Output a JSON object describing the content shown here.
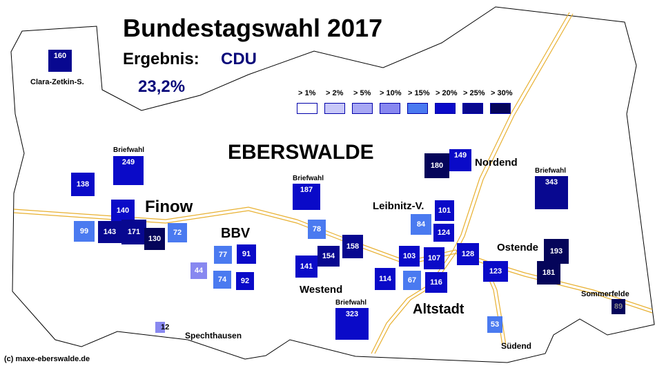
{
  "title": "Bundestagswahl 2017",
  "result": {
    "label": "Ergebnis:",
    "party": "CDU",
    "value": "23,2%"
  },
  "city": "EBERSWALDE",
  "copyright": "(c) maxe-eberswalde.de",
  "colors": {
    "outline": "#000000",
    "road": "#e8b030",
    "text_accent": "#0a0a7a"
  },
  "legend": [
    {
      "label": "> 1%",
      "color": "#ffffff"
    },
    {
      "label": "> 2%",
      "color": "#c8c8f8"
    },
    {
      "label": "> 5%",
      "color": "#a8a8f4"
    },
    {
      "label": "> 10%",
      "color": "#8888f0"
    },
    {
      "label": "> 15%",
      "color": "#4a7af0"
    },
    {
      "label": "> 20%",
      "color": "#0a0ac8"
    },
    {
      "label": "> 25%",
      "color": "#080890"
    },
    {
      "label": "> 30%",
      "color": "#05055a"
    }
  ],
  "districts": [
    "Clara-Zetkin-S.",
    "Finow",
    "BBV",
    "Westend",
    "Leibnitz-V.",
    "Nordend",
    "Ostende",
    "Altstadt",
    "Spechthausen",
    "Südend",
    "Sommerfelde"
  ],
  "briefwahl_label": "Briefwahl",
  "precincts": [
    {
      "id": "160",
      "level": 6
    },
    {
      "id": "249",
      "level": 5,
      "briefwahl": true
    },
    {
      "id": "138",
      "level": 5
    },
    {
      "id": "140",
      "level": 5
    },
    {
      "id": "99",
      "level": 4
    },
    {
      "id": "143",
      "level": 6
    },
    {
      "id": "171",
      "level": 6
    },
    {
      "id": "130",
      "level": 7
    },
    {
      "id": "72",
      "level": 4
    },
    {
      "id": "77",
      "level": 4
    },
    {
      "id": "91",
      "level": 5
    },
    {
      "id": "44",
      "level": 3
    },
    {
      "id": "74",
      "level": 4
    },
    {
      "id": "92",
      "level": 5
    },
    {
      "id": "12",
      "level": 3
    },
    {
      "id": "187",
      "level": 5,
      "briefwahl": true
    },
    {
      "id": "78",
      "level": 4
    },
    {
      "id": "158",
      "level": 6
    },
    {
      "id": "154",
      "level": 6
    },
    {
      "id": "141",
      "level": 5
    },
    {
      "id": "323",
      "level": 5,
      "briefwahl": true
    },
    {
      "id": "180",
      "level": 7
    },
    {
      "id": "149",
      "level": 5
    },
    {
      "id": "101",
      "level": 5
    },
    {
      "id": "84",
      "level": 4
    },
    {
      "id": "124",
      "level": 5
    },
    {
      "id": "103",
      "level": 5
    },
    {
      "id": "107",
      "level": 5
    },
    {
      "id": "114",
      "level": 5
    },
    {
      "id": "67",
      "level": 4
    },
    {
      "id": "116",
      "level": 5
    },
    {
      "id": "128",
      "level": 5
    },
    {
      "id": "123",
      "level": 5
    },
    {
      "id": "53",
      "level": 4
    },
    {
      "id": "343",
      "level": 6,
      "briefwahl": true
    },
    {
      "id": "193",
      "level": 7
    },
    {
      "id": "181",
      "level": 7
    },
    {
      "id": "89",
      "level": 7
    }
  ]
}
